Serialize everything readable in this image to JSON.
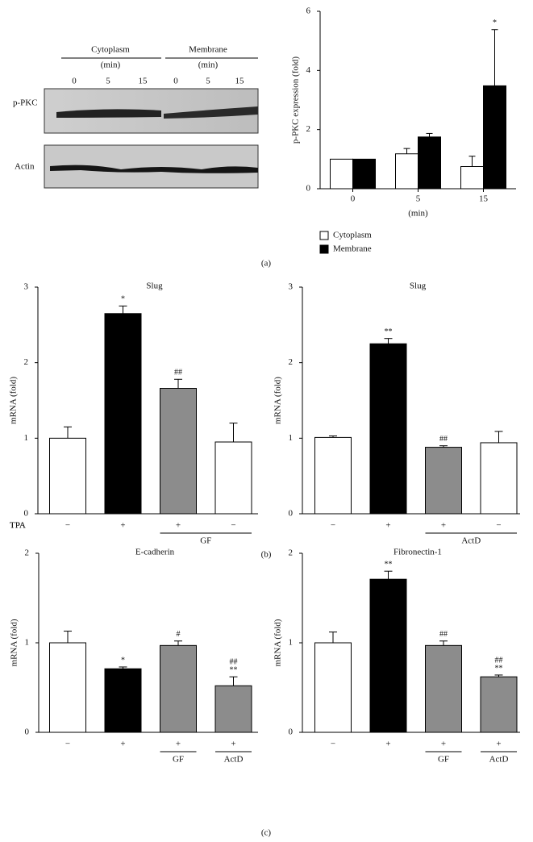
{
  "blot": {
    "groups": [
      "Cytoplasm",
      "Membrane"
    ],
    "unit": "(min)",
    "lanes": [
      "0",
      "5",
      "15",
      "0",
      "5",
      "15"
    ],
    "rows": [
      "p-PKC",
      "Actin"
    ]
  },
  "panel_labels": [
    "(a)",
    "(b)",
    "(c)"
  ],
  "chart_data": [
    {
      "type": "grouped_bar",
      "ylabel": "p-PKC expression (fold)",
      "xlabel": "(min)",
      "categories": [
        "0",
        "5",
        "15"
      ],
      "ylim": [
        0,
        6
      ],
      "yticks": [
        0,
        2,
        4,
        6
      ],
      "series": [
        {
          "name": "Cytoplasm",
          "color": "#ffffff",
          "values": [
            1.0,
            1.18,
            0.75
          ],
          "errors": [
            0,
            0.18,
            0.35
          ]
        },
        {
          "name": "Membrane",
          "color": "#000000",
          "values": [
            1.0,
            1.75,
            3.48
          ],
          "errors": [
            0,
            0.12,
            1.9
          ],
          "annotations": [
            null,
            null,
            "*"
          ]
        }
      ]
    },
    {
      "type": "bar",
      "title": "Slug",
      "ylabel": "mRNA (fold)",
      "row_label": "TPA",
      "categories": [
        "−",
        "+",
        "+",
        "−"
      ],
      "groups": [
        {
          "label": "GF",
          "span": [
            2,
            3
          ]
        }
      ],
      "ylim": [
        0,
        3
      ],
      "yticks": [
        0,
        1,
        2,
        3
      ],
      "colors": [
        "#ffffff",
        "#000000",
        "#8c8c8c",
        "#ffffff"
      ],
      "values": [
        1.0,
        2.65,
        1.66,
        0.95
      ],
      "errors": [
        0.15,
        0.1,
        0.12,
        0.25
      ],
      "annotations": [
        null,
        "*",
        "##",
        null
      ]
    },
    {
      "type": "bar",
      "title": "Slug",
      "ylabel": "mRNA (fold)",
      "row_label": "TPA",
      "categories": [
        "−",
        "+",
        "+",
        "−"
      ],
      "groups": [
        {
          "label": "ActD",
          "span": [
            2,
            3
          ]
        }
      ],
      "ylim": [
        0,
        3
      ],
      "yticks": [
        0,
        1,
        2,
        3
      ],
      "colors": [
        "#ffffff",
        "#000000",
        "#8c8c8c",
        "#ffffff"
      ],
      "values": [
        1.01,
        2.25,
        0.88,
        0.94
      ],
      "errors": [
        0.02,
        0.07,
        0.02,
        0.15
      ],
      "annotations": [
        null,
        "**",
        "##",
        null
      ]
    },
    {
      "type": "bar",
      "title": "E-cadherin",
      "ylabel": "mRNA (fold)",
      "categories": [
        "−",
        "+",
        "+",
        "+"
      ],
      "groups": [
        {
          "label": "GF",
          "span": [
            2,
            2
          ]
        },
        {
          "label": "ActD",
          "span": [
            3,
            3
          ]
        }
      ],
      "ylim": [
        0,
        2
      ],
      "yticks": [
        0,
        1,
        2
      ],
      "colors": [
        "#ffffff",
        "#000000",
        "#8c8c8c",
        "#8c8c8c"
      ],
      "values": [
        1.0,
        0.71,
        0.97,
        0.52
      ],
      "errors": [
        0.13,
        0.02,
        0.05,
        0.1
      ],
      "annotations": [
        null,
        "*",
        "#",
        [
          "##",
          "**"
        ]
      ]
    },
    {
      "type": "bar",
      "title": "Fibronectin-1",
      "ylabel": "mRNA (fold)",
      "categories": [
        "−",
        "+",
        "+",
        "+"
      ],
      "groups": [
        {
          "label": "GF",
          "span": [
            2,
            2
          ]
        },
        {
          "label": "ActD",
          "span": [
            3,
            3
          ]
        }
      ],
      "ylim": [
        0,
        2
      ],
      "yticks": [
        0,
        1,
        2
      ],
      "colors": [
        "#ffffff",
        "#000000",
        "#8c8c8c",
        "#8c8c8c"
      ],
      "values": [
        1.0,
        1.71,
        0.97,
        0.62
      ],
      "errors": [
        0.12,
        0.09,
        0.05,
        0.02
      ],
      "annotations": [
        null,
        "**",
        "##",
        [
          "##",
          "**"
        ]
      ]
    }
  ]
}
